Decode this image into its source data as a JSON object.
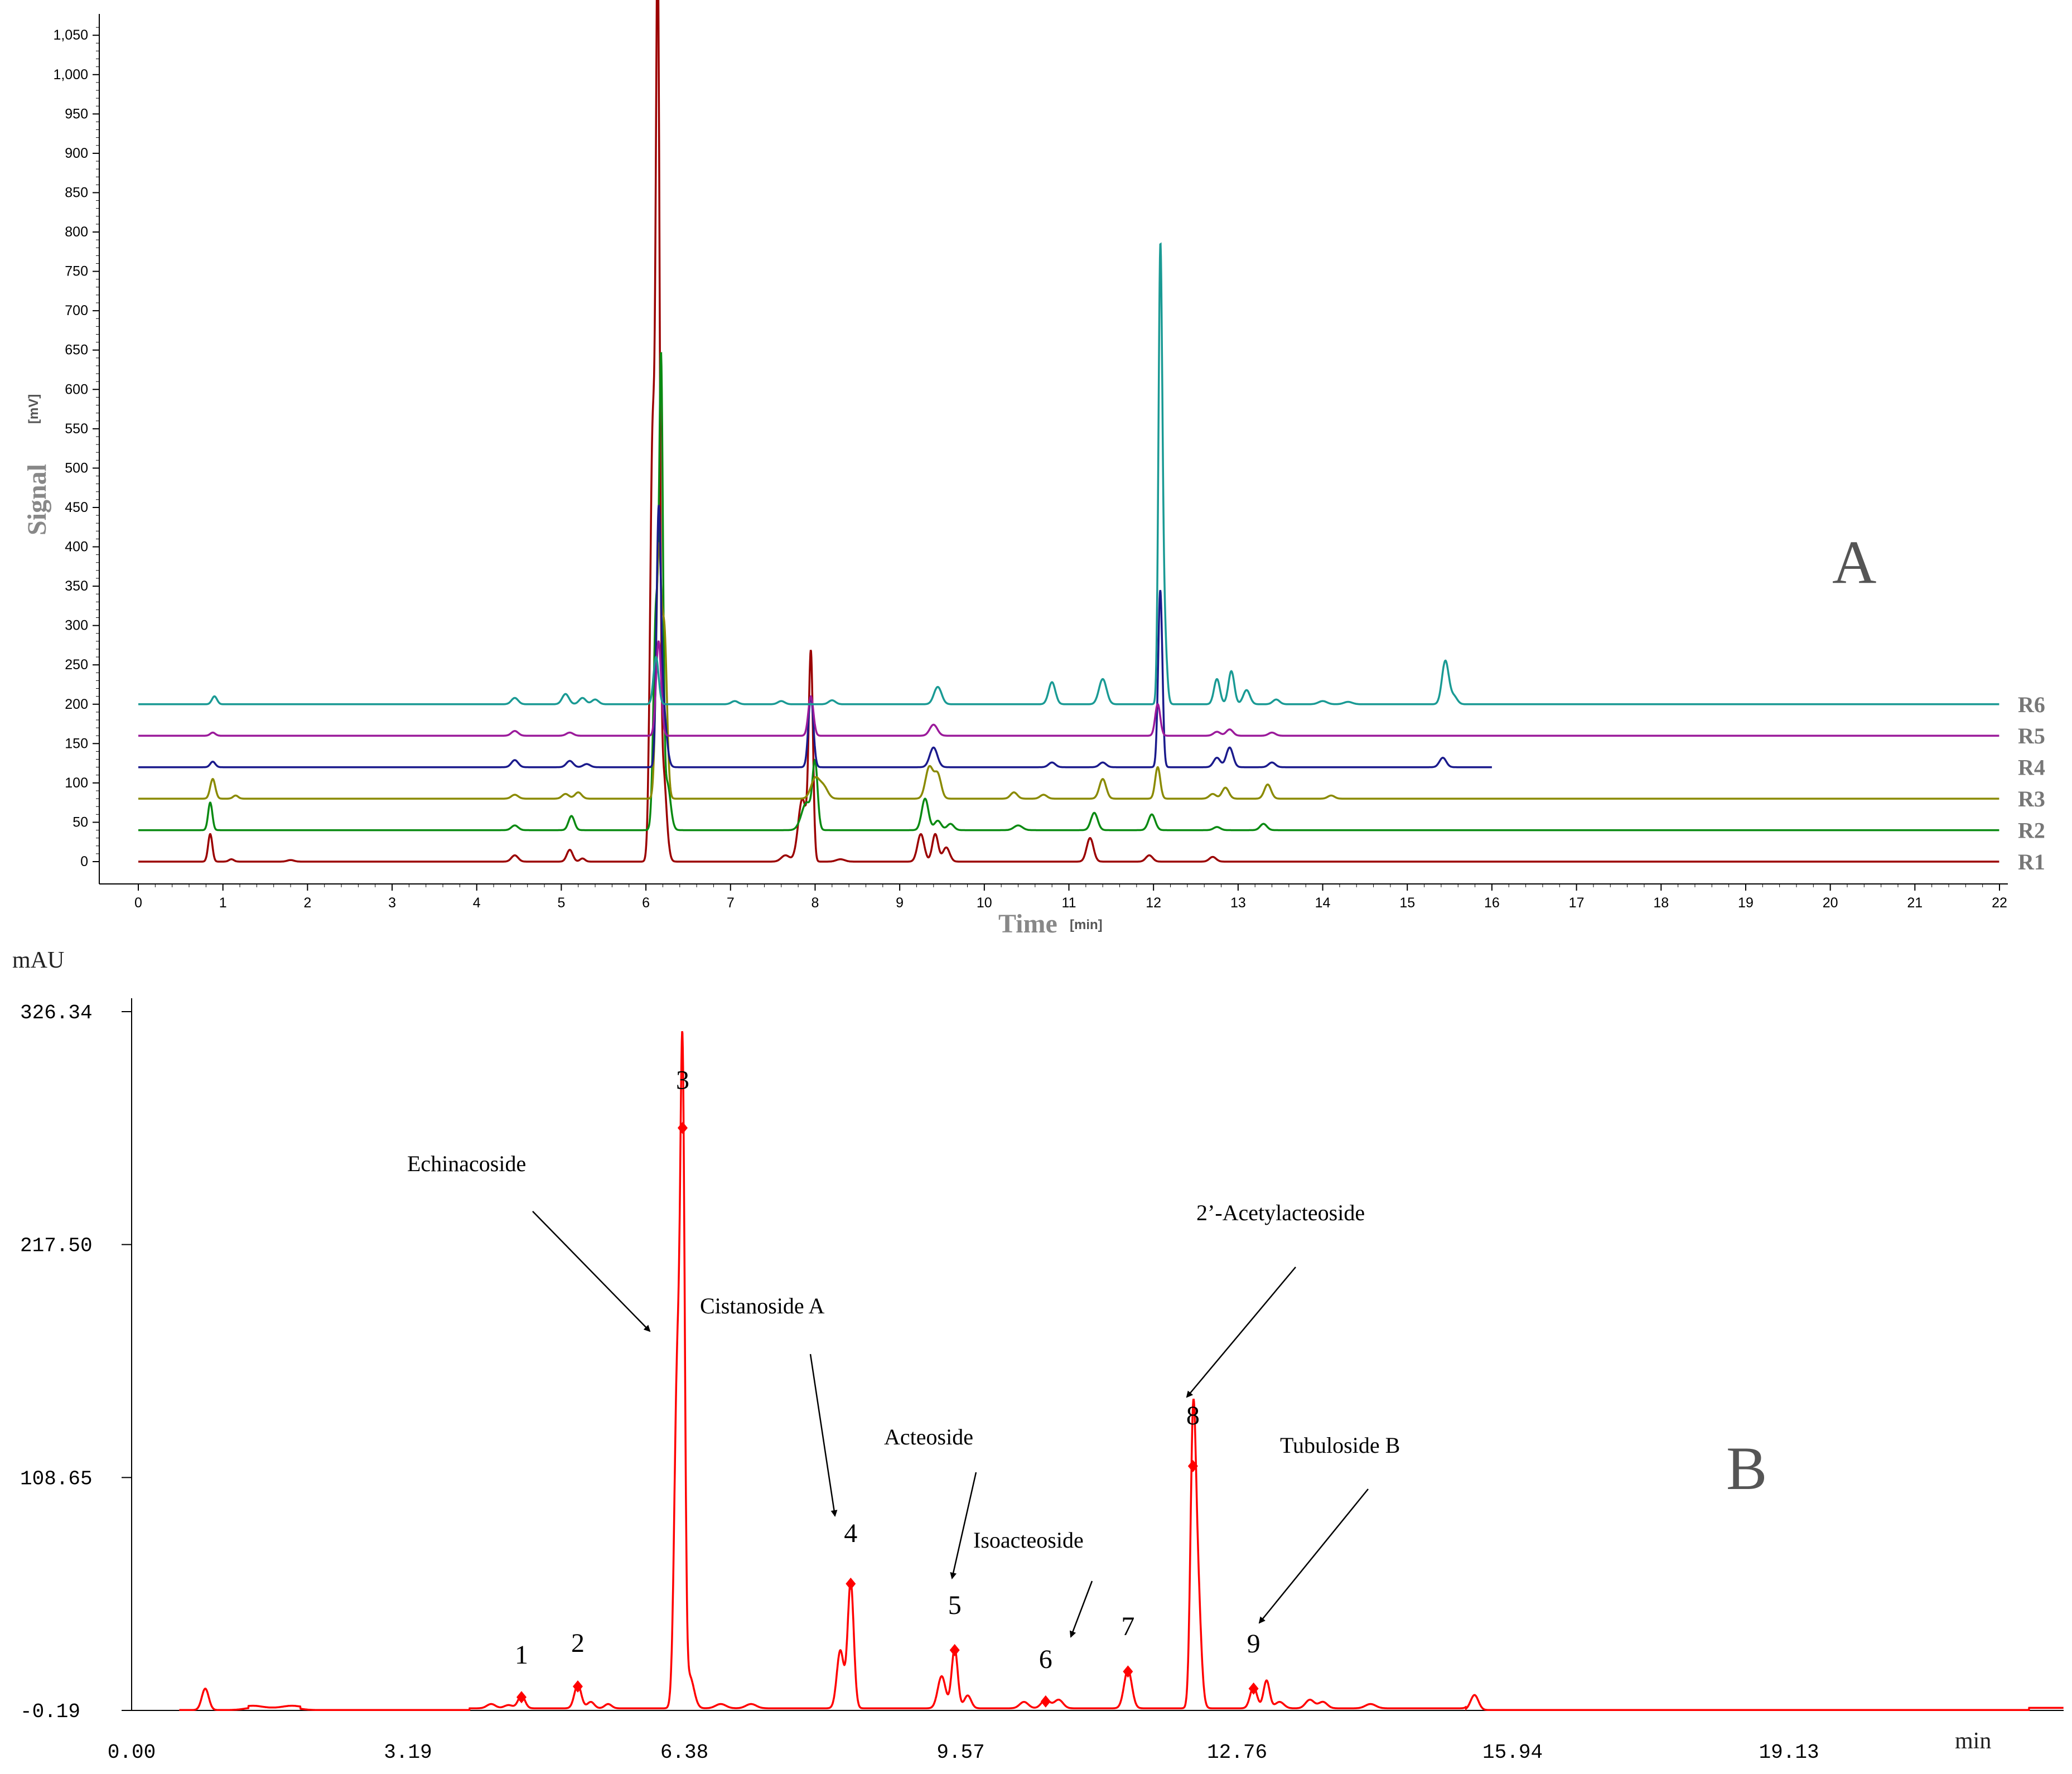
{
  "chart_data": [
    {
      "type": "line",
      "panel_letter": "A",
      "ylabel": "Signal",
      "ylabel_unit": "[mV]",
      "xlabel": "Time",
      "xlabel_unit": "[min]",
      "xlim": [
        0,
        22
      ],
      "ylim": [
        0,
        1070
      ],
      "x_ticks": [
        "0",
        "1",
        "2",
        "3",
        "4",
        "5",
        "6",
        "7",
        "8",
        "9",
        "10",
        "11",
        "12",
        "13",
        "14",
        "15",
        "16",
        "17",
        "18",
        "19",
        "20",
        "21",
        "22"
      ],
      "y_ticks": [
        "0",
        "50",
        "100",
        "150",
        "200",
        "250",
        "300",
        "350",
        "400",
        "450",
        "500",
        "550",
        "600",
        "650",
        "700",
        "750",
        "800",
        "850",
        "900",
        "950",
        "1,000",
        "1,050"
      ],
      "series": [
        {
          "name": "R1",
          "color": "#9b0000",
          "baseline": 0,
          "end": 22,
          "peaks": [
            [
              0.85,
              35,
              0.025
            ],
            [
              1.1,
              3,
              0.03
            ],
            [
              1.8,
              2,
              0.04
            ],
            [
              4.45,
              8,
              0.04
            ],
            [
              5.1,
              15,
              0.035
            ],
            [
              5.25,
              4,
              0.03
            ],
            [
              6.08,
              540,
              0.03
            ],
            [
              6.14,
              1065,
              0.022
            ],
            [
              6.2,
              120,
              0.04
            ],
            [
              7.65,
              8,
              0.05
            ],
            [
              7.85,
              80,
              0.05
            ],
            [
              7.95,
              258,
              0.025
            ],
            [
              8.3,
              3,
              0.05
            ],
            [
              9.25,
              35,
              0.04
            ],
            [
              9.42,
              35,
              0.035
            ],
            [
              9.55,
              18,
              0.04
            ],
            [
              11.25,
              30,
              0.04
            ],
            [
              11.95,
              8,
              0.04
            ],
            [
              12.7,
              6,
              0.04
            ]
          ]
        },
        {
          "name": "R2",
          "color": "#0a8a12",
          "baseline": 40,
          "end": 22,
          "peaks": [
            [
              0.85,
              35,
              0.025
            ],
            [
              4.45,
              6,
              0.04
            ],
            [
              5.12,
              18,
              0.035
            ],
            [
              6.12,
              280,
              0.03
            ],
            [
              6.18,
              555,
              0.022
            ],
            [
              6.25,
              60,
              0.04
            ],
            [
              7.9,
              35,
              0.06
            ],
            [
              8.0,
              80,
              0.03
            ],
            [
              9.3,
              40,
              0.04
            ],
            [
              9.45,
              12,
              0.04
            ],
            [
              9.6,
              8,
              0.04
            ],
            [
              10.4,
              6,
              0.05
            ],
            [
              11.3,
              22,
              0.04
            ],
            [
              11.98,
              20,
              0.04
            ],
            [
              12.75,
              4,
              0.04
            ],
            [
              13.3,
              8,
              0.04
            ]
          ]
        },
        {
          "name": "R3",
          "color": "#8a8a00",
          "baseline": 80,
          "end": 22,
          "peaks": [
            [
              0.88,
              25,
              0.03
            ],
            [
              1.15,
              4,
              0.03
            ],
            [
              4.45,
              5,
              0.04
            ],
            [
              5.05,
              6,
              0.04
            ],
            [
              5.2,
              8,
              0.04
            ],
            [
              6.15,
              310,
              0.03
            ],
            [
              6.22,
              200,
              0.03
            ],
            [
              8.0,
              25,
              0.05
            ],
            [
              8.1,
              15,
              0.05
            ],
            [
              9.35,
              40,
              0.045
            ],
            [
              9.45,
              30,
              0.04
            ],
            [
              10.35,
              8,
              0.04
            ],
            [
              10.7,
              5,
              0.04
            ],
            [
              11.4,
              25,
              0.04
            ],
            [
              12.05,
              40,
              0.03
            ],
            [
              12.7,
              6,
              0.04
            ],
            [
              12.85,
              14,
              0.04
            ],
            [
              13.35,
              18,
              0.04
            ],
            [
              14.1,
              4,
              0.04
            ]
          ]
        },
        {
          "name": "R4",
          "color": "#1a1a8c",
          "baseline": 120,
          "end": 16,
          "peaks": [
            [
              0.88,
              7,
              0.03
            ],
            [
              4.45,
              9,
              0.04
            ],
            [
              5.1,
              8,
              0.04
            ],
            [
              5.3,
              4,
              0.04
            ],
            [
              6.15,
              295,
              0.025
            ],
            [
              6.2,
              80,
              0.04
            ],
            [
              7.95,
              90,
              0.03
            ],
            [
              9.4,
              25,
              0.045
            ],
            [
              10.8,
              6,
              0.04
            ],
            [
              11.4,
              6,
              0.04
            ],
            [
              12.08,
              225,
              0.025
            ],
            [
              12.75,
              12,
              0.04
            ],
            [
              12.9,
              25,
              0.04
            ],
            [
              13.4,
              6,
              0.04
            ],
            [
              15.42,
              12,
              0.04
            ]
          ]
        },
        {
          "name": "R5",
          "color": "#9b1a9b",
          "baseline": 160,
          "end": 22,
          "peaks": [
            [
              0.88,
              4,
              0.03
            ],
            [
              4.45,
              6,
              0.04
            ],
            [
              5.1,
              4,
              0.04
            ],
            [
              6.15,
              120,
              0.03
            ],
            [
              7.95,
              50,
              0.03
            ],
            [
              9.4,
              14,
              0.045
            ],
            [
              12.05,
              40,
              0.03
            ],
            [
              12.75,
              5,
              0.04
            ],
            [
              12.9,
              8,
              0.04
            ],
            [
              13.4,
              4,
              0.04
            ]
          ]
        },
        {
          "name": "R6",
          "color": "#1a9a94",
          "baseline": 200,
          "end": 22,
          "peaks": [
            [
              0.9,
              10,
              0.03
            ],
            [
              4.45,
              8,
              0.04
            ],
            [
              5.05,
              13,
              0.04
            ],
            [
              5.25,
              8,
              0.04
            ],
            [
              5.4,
              6,
              0.04
            ],
            [
              6.12,
              60,
              0.03
            ],
            [
              7.05,
              4,
              0.04
            ],
            [
              7.6,
              4,
              0.04
            ],
            [
              8.2,
              5,
              0.04
            ],
            [
              9.45,
              22,
              0.045
            ],
            [
              10.8,
              28,
              0.04
            ],
            [
              11.4,
              32,
              0.045
            ],
            [
              12.08,
              535,
              0.022
            ],
            [
              12.12,
              120,
              0.03
            ],
            [
              12.75,
              32,
              0.035
            ],
            [
              12.92,
              42,
              0.035
            ],
            [
              13.1,
              18,
              0.04
            ],
            [
              13.45,
              6,
              0.04
            ],
            [
              14.0,
              4,
              0.05
            ],
            [
              14.3,
              3,
              0.05
            ],
            [
              15.45,
              55,
              0.04
            ],
            [
              15.55,
              10,
              0.04
            ]
          ]
        }
      ]
    },
    {
      "type": "line",
      "panel_letter": "B",
      "ylabel": "mAU",
      "xlabel": "min",
      "xlim": [
        0,
        22.3
      ],
      "ylim": [
        -0.19,
        326.34
      ],
      "x_ticks": [
        "0.00",
        "3.19",
        "6.38",
        "9.57",
        "12.76",
        "15.94",
        "19.13"
      ],
      "y_ticks": [
        "-0.19",
        "108.65",
        "217.50",
        "326.34"
      ],
      "series": [
        {
          "name": "",
          "color": "#ff0000",
          "peaks": [
            [
              0.85,
              10,
              0.04
            ],
            [
              1.4,
              1,
              0.1
            ],
            [
              1.85,
              1,
              0.1
            ],
            [
              4.15,
              2,
              0.05
            ],
            [
              4.35,
              1.5,
              0.05
            ],
            [
              4.5,
              6,
              0.04
            ],
            [
              5.15,
              11,
              0.04
            ],
            [
              5.3,
              3,
              0.04
            ],
            [
              5.5,
              2,
              0.04
            ],
            [
              6.3,
              160,
              0.035
            ],
            [
              6.36,
              272,
              0.025
            ],
            [
              6.44,
              15,
              0.05
            ],
            [
              6.8,
              2,
              0.06
            ],
            [
              7.15,
              2,
              0.06
            ],
            [
              8.18,
              27,
              0.04
            ],
            [
              8.3,
              59,
              0.035
            ],
            [
              9.35,
              15,
              0.045
            ],
            [
              9.5,
              28,
              0.035
            ],
            [
              9.65,
              6,
              0.04
            ],
            [
              10.3,
              3,
              0.05
            ],
            [
              10.55,
              4,
              0.05
            ],
            [
              10.7,
              4,
              0.05
            ],
            [
              11.5,
              18,
              0.045
            ],
            [
              12.25,
              114,
              0.03
            ],
            [
              12.3,
              60,
              0.04
            ],
            [
              12.95,
              10,
              0.04
            ],
            [
              13.1,
              13,
              0.035
            ],
            [
              13.25,
              3,
              0.05
            ],
            [
              13.6,
              4,
              0.05
            ],
            [
              13.75,
              3,
              0.05
            ],
            [
              14.3,
              2,
              0.06
            ],
            [
              15.5,
              7,
              0.045
            ]
          ],
          "plateaus": [
            [
              1.35,
              1.95,
              1.0
            ],
            [
              3.9,
              15.4,
              0.8
            ],
            [
              21.9,
              22.3,
              1.0
            ]
          ]
        }
      ],
      "peak_markers": [
        {
          "label": "1",
          "x": 4.5,
          "y": 6
        },
        {
          "label": "2",
          "x": 5.15,
          "y": 11
        },
        {
          "label": "3",
          "x": 6.36,
          "y": 272
        },
        {
          "label": "4",
          "x": 8.3,
          "y": 59
        },
        {
          "label": "5",
          "x": 9.5,
          "y": 28
        },
        {
          "label": "6",
          "x": 10.55,
          "y": 4
        },
        {
          "label": "7",
          "x": 11.5,
          "y": 18
        },
        {
          "label": "8",
          "x": 12.25,
          "y": 114
        },
        {
          "label": "9",
          "x": 12.95,
          "y": 10
        }
      ],
      "annotations": [
        {
          "text": "Echinacoside",
          "target": "3"
        },
        {
          "text": "Cistanoside A",
          "target": "4"
        },
        {
          "text": "Acteoside",
          "target": "5"
        },
        {
          "text": "Isoacteoside",
          "target": "6"
        },
        {
          "text": "2’-Acetylacteoside",
          "target": "8"
        },
        {
          "text": "Tubuloside B",
          "target": "9"
        }
      ]
    }
  ]
}
